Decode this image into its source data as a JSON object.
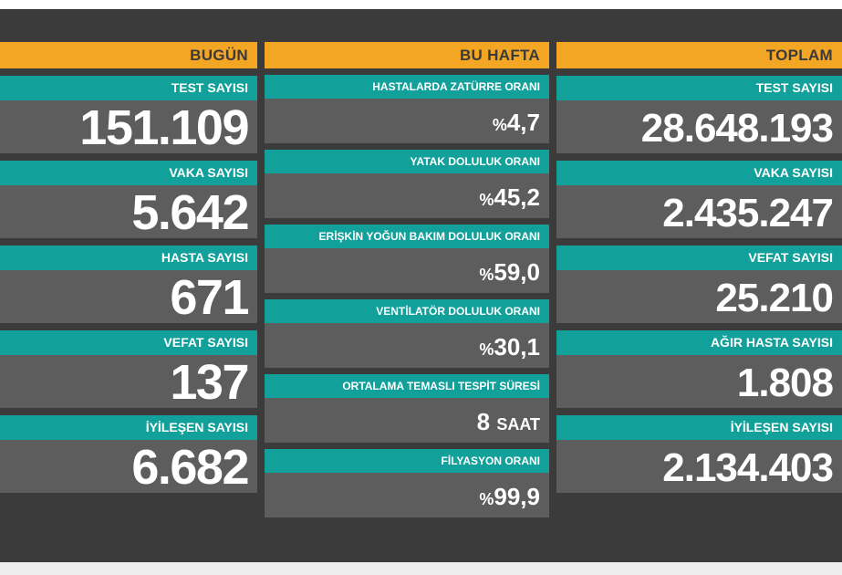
{
  "today": {
    "header": "BUGÜN",
    "items": [
      {
        "label": "TEST SAYISI",
        "value": "151.109"
      },
      {
        "label": "VAKA SAYISI",
        "value": "5.642"
      },
      {
        "label": "HASTA SAYISI",
        "value": "671"
      },
      {
        "label": "VEFAT SAYISI",
        "value": "137"
      },
      {
        "label": "İYİLEŞEN SAYISI",
        "value": "6.682"
      }
    ]
  },
  "week": {
    "header": "BU HAFTA",
    "items": [
      {
        "label": "HASTALARDA ZATÜRRE ORANI",
        "prefix": "%",
        "value": "4,7"
      },
      {
        "label": "YATAK DOLULUK ORANI",
        "prefix": "%",
        "value": "45,2"
      },
      {
        "label": "ERİŞKİN YOĞUN BAKIM DOLULUK ORANI",
        "prefix": "%",
        "value": "59,0"
      },
      {
        "label": "VENTİLATÖR DOLULUK ORANI",
        "prefix": "%",
        "value": "30,1"
      },
      {
        "label": "ORTALAMA TEMASLI TESPİT SÜRESİ",
        "value": "8",
        "unit": "SAAT"
      },
      {
        "label": "FİLYASYON ORANI",
        "prefix": "%",
        "value": "99,9"
      }
    ]
  },
  "total": {
    "header": "TOPLAM",
    "items": [
      {
        "label": "TEST SAYISI",
        "value": "28.648.193"
      },
      {
        "label": "VAKA SAYISI",
        "value": "2.435.247"
      },
      {
        "label": "VEFAT SAYISI",
        "value": "25.210"
      },
      {
        "label": "AĞIR HASTA SAYISI",
        "value": "1.808"
      },
      {
        "label": "İYİLEŞEN SAYISI",
        "value": "2.134.403"
      }
    ]
  },
  "colors": {
    "header": "#f3a623",
    "label": "#12a09a",
    "value_bg": "#5d5d5d",
    "board": "#3b3b3b"
  }
}
